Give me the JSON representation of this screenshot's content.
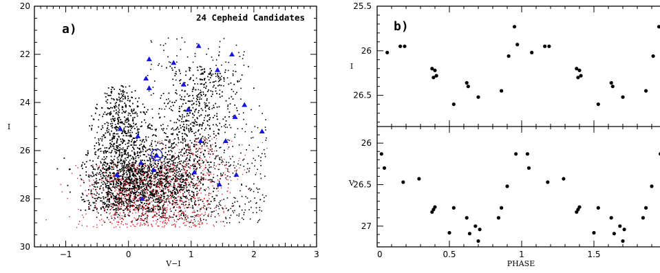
{
  "colors": {
    "black": "#000000",
    "red": "#e0202a",
    "blue": "#1515dd"
  },
  "chart_data": [
    {
      "type": "scatter",
      "panel": "a)",
      "title": "24 Cepheid Candidates",
      "xlabel": "V−I",
      "ylabel": "I",
      "xlim": [
        -1.5,
        3
      ],
      "ylim": [
        30,
        20
      ],
      "y_inverted": true,
      "xticks": [
        -1,
        0,
        1,
        2,
        3
      ],
      "xtick_labels": [
        "−1",
        "0",
        "1",
        "2",
        "3"
      ],
      "yticks": [
        20,
        22,
        24,
        26,
        28,
        30
      ],
      "ytick_labels": [
        "20",
        "22",
        "24",
        "26",
        "28",
        "30"
      ],
      "circled_star": {
        "x": 0.45,
        "y": 26.2
      },
      "cepheids": [
        [
          0.33,
          22.2
        ],
        [
          0.72,
          22.35
        ],
        [
          1.12,
          21.65
        ],
        [
          1.65,
          22.0
        ],
        [
          1.42,
          22.65
        ],
        [
          0.28,
          23.0
        ],
        [
          0.33,
          23.4
        ],
        [
          0.88,
          23.25
        ],
        [
          0.95,
          24.3
        ],
        [
          1.85,
          24.1
        ],
        [
          1.7,
          24.6
        ],
        [
          2.13,
          25.2
        ],
        [
          -0.13,
          25.1
        ],
        [
          0.15,
          25.4
        ],
        [
          1.15,
          25.6
        ],
        [
          1.55,
          25.6
        ],
        [
          0.45,
          26.2
        ],
        [
          0.2,
          26.5
        ],
        [
          0.4,
          26.8
        ],
        [
          1.05,
          26.9
        ],
        [
          1.72,
          27.0
        ],
        [
          -0.18,
          27.0
        ],
        [
          1.45,
          27.4
        ],
        [
          0.22,
          28.0
        ]
      ]
    },
    {
      "type": "scatter",
      "panel": "b)",
      "xlabel": "PHASE",
      "xlim": [
        0,
        2
      ],
      "xticks": [
        0,
        0.5,
        1,
        1.5,
        2
      ],
      "xtick_labels": [
        "0",
        "0.5",
        "1",
        "1.5",
        "2"
      ],
      "subplots": [
        {
          "ylabel": "I",
          "ylim": [
            26.85,
            25.5
          ],
          "yticks": [
            25.5,
            26,
            26.5
          ],
          "ytick_labels": [
            "25.5",
            "26",
            "26.5"
          ],
          "points": [
            [
              0.07,
              26.02
            ],
            [
              0.16,
              25.95
            ],
            [
              0.19,
              25.95
            ],
            [
              0.38,
              26.2
            ],
            [
              0.39,
              26.3
            ],
            [
              0.4,
              26.22
            ],
            [
              0.41,
              26.28
            ],
            [
              0.53,
              26.6
            ],
            [
              0.62,
              26.36
            ],
            [
              0.63,
              26.4
            ],
            [
              0.7,
              26.52
            ],
            [
              0.86,
              26.45
            ],
            [
              0.91,
              26.06
            ],
            [
              0.95,
              25.73
            ],
            [
              0.97,
              25.93
            ],
            [
              1.07,
              26.02
            ],
            [
              1.16,
              25.95
            ],
            [
              1.19,
              25.95
            ],
            [
              1.38,
              26.2
            ],
            [
              1.39,
              26.3
            ],
            [
              1.4,
              26.22
            ],
            [
              1.41,
              26.28
            ],
            [
              1.53,
              26.6
            ],
            [
              1.62,
              26.36
            ],
            [
              1.63,
              26.4
            ],
            [
              1.7,
              26.52
            ],
            [
              1.86,
              26.45
            ],
            [
              1.91,
              26.06
            ],
            [
              1.95,
              25.73
            ],
            [
              1.97,
              25.93
            ]
          ]
        },
        {
          "ylabel": "V",
          "ylim": [
            27.25,
            25.8
          ],
          "yticks": [
            26,
            26.5,
            27
          ],
          "ytick_labels": [
            "26",
            "26.5",
            "27"
          ],
          "points": [
            [
              0.03,
              26.13
            ],
            [
              0.05,
              26.3
            ],
            [
              0.18,
              26.47
            ],
            [
              0.29,
              26.43
            ],
            [
              0.38,
              26.83
            ],
            [
              0.39,
              26.8
            ],
            [
              0.4,
              26.77
            ],
            [
              0.5,
              27.08
            ],
            [
              0.53,
              26.78
            ],
            [
              0.62,
              26.9
            ],
            [
              0.64,
              27.09
            ],
            [
              0.68,
              27.0
            ],
            [
              0.7,
              27.18
            ],
            [
              0.71,
              27.04
            ],
            [
              0.84,
              26.9
            ],
            [
              0.86,
              26.78
            ],
            [
              0.9,
              26.52
            ],
            [
              0.96,
              26.13
            ],
            [
              1.04,
              26.13
            ],
            [
              1.05,
              26.3
            ],
            [
              1.18,
              26.47
            ],
            [
              1.29,
              26.43
            ],
            [
              1.38,
              26.83
            ],
            [
              1.39,
              26.8
            ],
            [
              1.4,
              26.77
            ],
            [
              1.5,
              27.08
            ],
            [
              1.53,
              26.78
            ],
            [
              1.62,
              26.9
            ],
            [
              1.64,
              27.09
            ],
            [
              1.68,
              27.0
            ],
            [
              1.7,
              27.18
            ],
            [
              1.71,
              27.04
            ],
            [
              1.84,
              26.9
            ],
            [
              1.86,
              26.78
            ],
            [
              1.9,
              26.52
            ],
            [
              1.96,
              26.13
            ]
          ]
        }
      ]
    }
  ]
}
